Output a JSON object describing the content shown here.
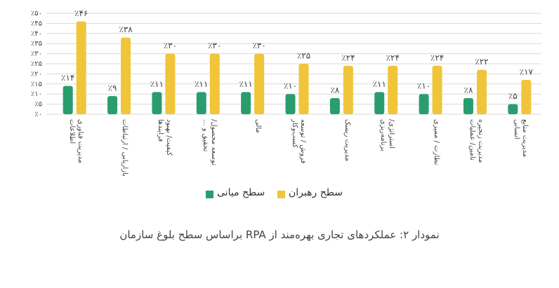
{
  "chart_data": {
    "type": "bar",
    "title": "نمودار ۲: عملکردهای تجاری بهره‌مند از RPA براساس سطح بلوغ سازمان",
    "categories": [
      "مدیریت فناوری اطلاعات",
      "بازاریابی / ارتباطات",
      "کیفیت/ بهبود فرایندها",
      "توسعه محصول/ تحقیق و ...",
      "مالی",
      "فروش / توسعه کسب‌وکار",
      "مدیریت ریسک",
      "استراتژی/ برنامه‌ریزی",
      "نظارت / ممیزی",
      "مدیریت زنجیره تامین/ عملیات",
      "مدیریت منابع انسانی"
    ],
    "series": [
      {
        "name": "سطح میانی",
        "color": "#2a9d6f",
        "values": [
          14,
          9,
          11,
          11,
          11,
          10,
          8,
          11,
          10,
          8,
          5
        ],
        "value_labels": [
          "٪۱۴",
          "٪۹",
          "٪۱۱",
          "٪۱۱",
          "٪۱۱",
          "٪۱۰",
          "٪۸",
          "٪۱۱",
          "٪۱۰",
          "٪۸",
          "٪۵"
        ]
      },
      {
        "name": "سطح رهبران",
        "color": "#f0c53a",
        "values": [
          46,
          38,
          30,
          30,
          30,
          25,
          24,
          24,
          24,
          22,
          17
        ],
        "value_labels": [
          "٪۴۶",
          "٪۳۸",
          "٪۳۰",
          "٪۳۰",
          "٪۳۰",
          "٪۲۵",
          "٪۲۴",
          "٪۲۴",
          "٪۲۴",
          "٪۲۲",
          "٪۱۷"
        ]
      }
    ],
    "ylim": [
      0,
      50
    ],
    "yticks": [
      {
        "value": 0,
        "label": "٪۰"
      },
      {
        "value": 5,
        "label": "٪۵"
      },
      {
        "value": 10,
        "label": "٪۱۰"
      },
      {
        "value": 15,
        "label": "٪۱۵"
      },
      {
        "value": 20,
        "label": "٪۲۰"
      },
      {
        "value": 25,
        "label": "٪۲۵"
      },
      {
        "value": 30,
        "label": "٪۳۰"
      },
      {
        "value": 35,
        "label": "٪۳۵"
      },
      {
        "value": 40,
        "label": "٪۴۰"
      },
      {
        "value": 45,
        "label": "٪۴۵"
      },
      {
        "value": 50,
        "label": "٪۵۰"
      }
    ],
    "grid": true
  }
}
